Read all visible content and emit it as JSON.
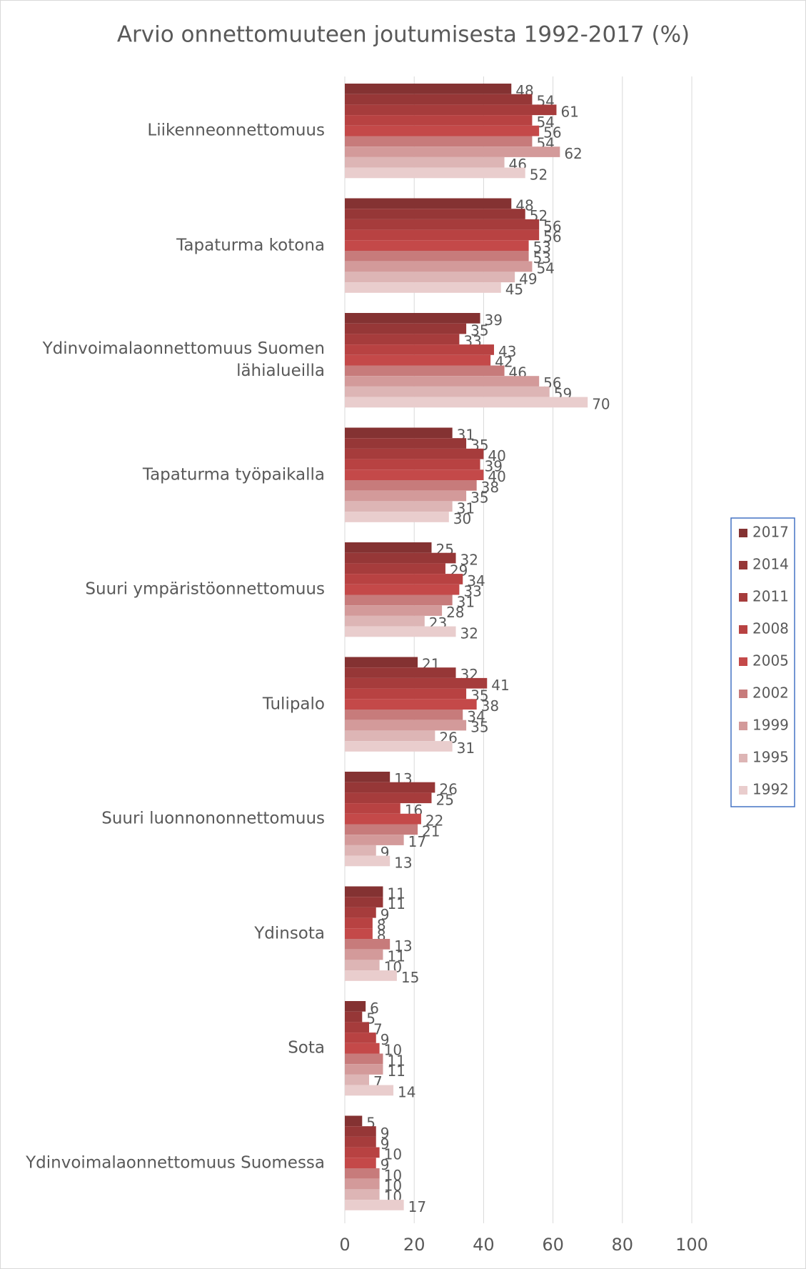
{
  "chart_data": {
    "type": "bar",
    "orientation": "horizontal",
    "title": "Arvio onnettomuuteen joutumisesta 1992-2017 (%)",
    "categories": [
      "Liikenneonnettomuus",
      "Tapaturma kotona",
      "Ydinvoimalaonnettomuus Suomen lähialueilla",
      "Tapaturma työpaikalla",
      "Suuri ympäristöonnettomuus",
      "Tulipalo",
      "Suuri luonnononnettomuus",
      "Ydinsota",
      "Sota",
      "Ydinvoimalaonnettomuus Suomessa"
    ],
    "series": [
      {
        "name": "2017",
        "color": "#843232",
        "values": [
          48,
          48,
          39,
          31,
          25,
          21,
          13,
          11,
          6,
          5
        ]
      },
      {
        "name": "2014",
        "color": "#963737",
        "values": [
          54,
          52,
          35,
          35,
          32,
          32,
          26,
          11,
          5,
          9
        ]
      },
      {
        "name": "2011",
        "color": "#a63c3c",
        "values": [
          61,
          56,
          33,
          40,
          29,
          41,
          25,
          9,
          7,
          9
        ]
      },
      {
        "name": "2008",
        "color": "#b84242",
        "values": [
          54,
          56,
          43,
          39,
          34,
          35,
          16,
          8,
          9,
          10
        ]
      },
      {
        "name": "2005",
        "color": "#c44949",
        "values": [
          56,
          53,
          42,
          40,
          33,
          38,
          22,
          8,
          10,
          9
        ]
      },
      {
        "name": "2002",
        "color": "#c77b7b",
        "values": [
          54,
          53,
          46,
          38,
          31,
          34,
          21,
          13,
          11,
          10
        ]
      },
      {
        "name": "1999",
        "color": "#d39a9a",
        "values": [
          62,
          54,
          56,
          35,
          28,
          35,
          17,
          11,
          11,
          10
        ]
      },
      {
        "name": "1995",
        "color": "#ddb5b5",
        "values": [
          46,
          49,
          59,
          31,
          23,
          26,
          9,
          10,
          7,
          10
        ]
      },
      {
        "name": "1992",
        "color": "#e9cdcd",
        "values": [
          52,
          45,
          70,
          30,
          32,
          31,
          13,
          15,
          14,
          17
        ]
      }
    ],
    "xlim": [
      0,
      100
    ],
    "xticks": [
      0,
      20,
      40,
      60,
      80,
      100
    ],
    "grid": true,
    "legend": "right"
  }
}
